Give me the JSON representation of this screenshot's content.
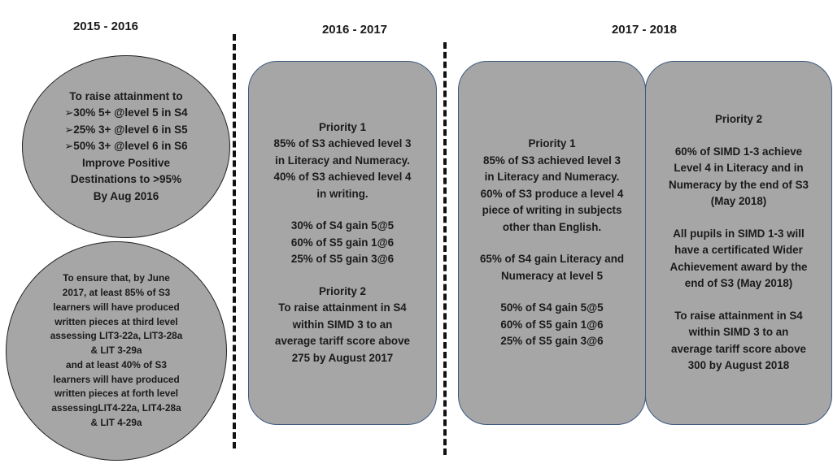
{
  "columns": {
    "c1": "2015 - 2016",
    "c2": "2016 - 2017",
    "c3": "2017 - 2018"
  },
  "ellipse_top": {
    "heading": "To raise attainment to",
    "bullet_glyph": "➢",
    "bullets": [
      "30% 5+ @level 5 in S4",
      "25% 3+ @level 6 in S5",
      "50% 3+ @level 6 in S6"
    ],
    "tail": "Improve Positive\nDestinations to >95%\nBy Aug 2016"
  },
  "ellipse_bottom": {
    "text": "To ensure that, by June\n2017, at least 85% of S3\nlearners will have produced\nwritten pieces at third level\nassessing LIT3-22a, LIT3-28a\n& LIT 3-29a\nand at least 40% of S3\nlearners will have produced\nwritten pieces at forth level\nassessingLIT4-22a, LIT4-28a\n& LIT 4-29a"
  },
  "box_2016": {
    "b1": "Priority 1\n85% of S3 achieved level 3\nin Literacy and Numeracy.\n40% of S3 achieved level 4\nin writing.",
    "b2": "30% of S4 gain 5@5\n60% of S5 gain 1@6\n25% of S5 gain 3@6",
    "b3": "Priority 2\nTo raise attainment in S4\nwithin SIMD 3 to an\naverage tariff score above\n275 by August 2017"
  },
  "box_2017_p1": {
    "b1": "Priority 1\n85% of S3 achieved level 3\nin Literacy and Numeracy.\n60% of S3 produce a level 4\npiece of writing in subjects\nother than English.",
    "b2": "65% of S4 gain Literacy and\nNumeracy at level 5",
    "b3": "50% of S4 gain 5@5\n60% of S5 gain 1@6\n25% of S5 gain 3@6"
  },
  "box_2017_p2": {
    "b1": "Priority 2",
    "b2": "60% of SIMD 1-3 achieve\nLevel 4 in Literacy and in\nNumeracy by the end of S3\n(May 2018)",
    "b3": "All pupils in SIMD 1-3 will\nhave a certificated Wider\nAchievement award by the\nend of S3 (May 2018)",
    "b4": "To raise attainment in S4\nwithin SIMD 3 to an\naverage tariff score above\n300 by August 2018"
  },
  "colors": {
    "shape_fill": "#a6a6a6",
    "box_border": "#3d5a80"
  }
}
